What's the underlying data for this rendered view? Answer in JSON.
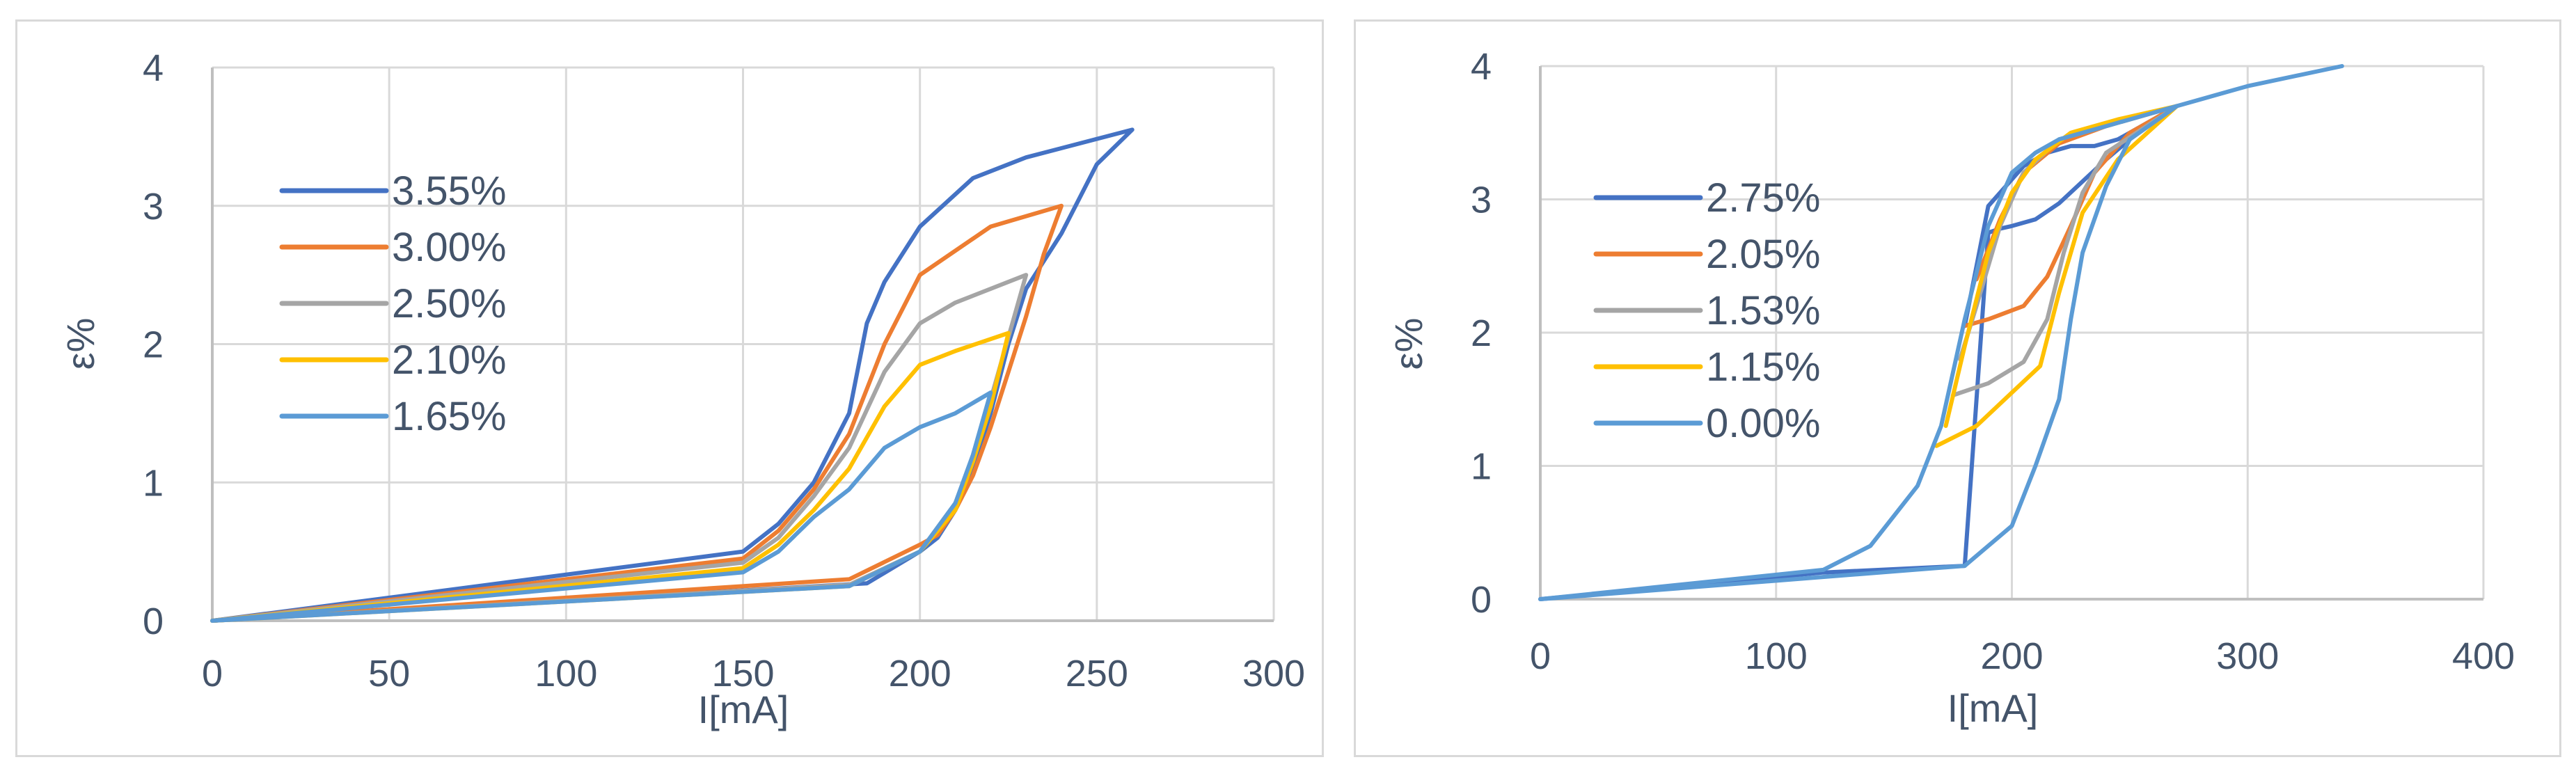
{
  "colors": {
    "blue": "#4472c4",
    "orange": "#ed7d31",
    "gray": "#a5a5a5",
    "yellow": "#ffc000",
    "lightblue": "#5b9bd5",
    "grid": "#d9d9d9",
    "axis": "#bfbfbf",
    "text": "#44546a"
  },
  "chart_data": [
    {
      "type": "line",
      "title": "",
      "xlabel": "I[mA]",
      "ylabel": "ε%",
      "xlim": [
        0,
        300
      ],
      "ylim": [
        0,
        4
      ],
      "x_ticks": [
        "0",
        "50",
        "100",
        "150",
        "200",
        "250",
        "300"
      ],
      "y_ticks": [
        "0",
        "1",
        "2",
        "3",
        "4"
      ],
      "grid": true,
      "legend_position": "upper-left",
      "series": [
        {
          "name": "3.55%",
          "color": "#4472c4",
          "x": [
            0,
            150,
            160,
            170,
            175,
            180,
            185,
            190,
            200,
            215,
            230,
            260,
            250,
            240,
            230,
            225,
            220,
            215,
            210,
            205,
            200,
            185,
            0
          ],
          "y": [
            0,
            0.5,
            0.7,
            1.0,
            1.25,
            1.5,
            2.15,
            2.45,
            2.85,
            3.2,
            3.35,
            3.55,
            3.3,
            2.8,
            2.4,
            2.0,
            1.5,
            1.1,
            0.8,
            0.6,
            0.5,
            0.27,
            0
          ]
        },
        {
          "name": "3.00%",
          "color": "#ed7d31",
          "x": [
            0,
            150,
            160,
            170,
            180,
            190,
            200,
            220,
            240,
            235,
            230,
            225,
            220,
            215,
            210,
            205,
            200,
            180,
            0
          ],
          "y": [
            0,
            0.45,
            0.65,
            0.95,
            1.35,
            2.0,
            2.5,
            2.85,
            3.0,
            2.65,
            2.2,
            1.8,
            1.4,
            1.05,
            0.8,
            0.62,
            0.55,
            0.3,
            0
          ]
        },
        {
          "name": "2.50%",
          "color": "#a5a5a5",
          "x": [
            0,
            150,
            160,
            170,
            180,
            190,
            200,
            210,
            230,
            225,
            220,
            215,
            210,
            200,
            180,
            0
          ],
          "y": [
            0,
            0.42,
            0.6,
            0.9,
            1.25,
            1.8,
            2.15,
            2.3,
            2.5,
            2.05,
            1.6,
            1.15,
            0.85,
            0.5,
            0.26,
            0
          ]
        },
        {
          "name": "2.10%",
          "color": "#ffc000",
          "x": [
            0,
            150,
            160,
            170,
            180,
            190,
            200,
            210,
            225,
            220,
            215,
            210,
            200,
            180,
            0
          ],
          "y": [
            0,
            0.38,
            0.55,
            0.8,
            1.1,
            1.55,
            1.85,
            1.95,
            2.08,
            1.55,
            1.15,
            0.8,
            0.5,
            0.25,
            0
          ]
        },
        {
          "name": "1.65%",
          "color": "#5b9bd5",
          "x": [
            0,
            150,
            160,
            170,
            180,
            190,
            200,
            210,
            220,
            215,
            210,
            200,
            180,
            0
          ],
          "y": [
            0,
            0.35,
            0.5,
            0.75,
            0.95,
            1.25,
            1.4,
            1.5,
            1.65,
            1.2,
            0.85,
            0.5,
            0.25,
            0
          ]
        }
      ]
    },
    {
      "type": "line",
      "title": "",
      "xlabel": "I[mA]",
      "ylabel": "ε%",
      "xlim": [
        0,
        400
      ],
      "ylim": [
        0,
        4
      ],
      "x_ticks": [
        "0",
        "100",
        "200",
        "300",
        "400"
      ],
      "y_ticks": [
        "0",
        "1",
        "2",
        "3",
        "4"
      ],
      "grid": true,
      "legend_position": "upper-left",
      "series": [
        {
          "name": "2.75%",
          "color": "#4472c4",
          "x": [
            0,
            120,
            180,
            190,
            195,
            200,
            210,
            220,
            240,
            260,
            270,
            255,
            245,
            235,
            225,
            215,
            205,
            190,
            185,
            180
          ],
          "y": [
            0,
            0.2,
            0.25,
            2.75,
            2.78,
            2.8,
            2.85,
            2.97,
            3.3,
            3.6,
            3.7,
            3.55,
            3.45,
            3.4,
            3.4,
            3.35,
            3.25,
            2.95,
            2.5,
            2.05
          ]
        },
        {
          "name": "2.05%",
          "color": "#ed7d31",
          "x": [
            180,
            190,
            205,
            215,
            225,
            235,
            250,
            270,
            240,
            220,
            205,
            195,
            185
          ],
          "y": [
            2.05,
            2.1,
            2.2,
            2.42,
            2.8,
            3.2,
            3.5,
            3.7,
            3.55,
            3.42,
            3.2,
            2.85,
            2.4
          ]
        },
        {
          "name": "1.53%",
          "color": "#a5a5a5",
          "x": [
            175,
            190,
            205,
            215,
            222,
            230,
            240,
            270,
            240,
            220,
            205,
            195,
            185,
            178
          ],
          "y": [
            1.53,
            1.62,
            1.78,
            2.1,
            2.6,
            3.05,
            3.35,
            3.7,
            3.55,
            3.45,
            3.2,
            2.8,
            2.2,
            1.8
          ]
        },
        {
          "name": "1.15%",
          "color": "#ffc000",
          "x": [
            168,
            185,
            200,
            212,
            220,
            230,
            245,
            270,
            245,
            225,
            210,
            200,
            190,
            180,
            172
          ],
          "y": [
            1.15,
            1.3,
            1.55,
            1.75,
            2.3,
            2.9,
            3.3,
            3.7,
            3.6,
            3.5,
            3.3,
            3.05,
            2.6,
            1.9,
            1.3
          ]
        },
        {
          "name": "0.00%",
          "color": "#5b9bd5",
          "x": [
            0,
            120,
            140,
            160,
            170,
            180,
            190,
            200,
            210,
            220,
            240,
            270,
            300,
            340,
            300,
            270,
            250,
            240,
            230,
            225,
            220,
            210,
            200,
            180,
            0
          ],
          "y": [
            0,
            0.22,
            0.4,
            0.85,
            1.3,
            2.1,
            2.8,
            3.2,
            3.35,
            3.45,
            3.55,
            3.7,
            3.85,
            4.0,
            3.85,
            3.7,
            3.45,
            3.1,
            2.6,
            2.1,
            1.5,
            1.0,
            0.55,
            0.25,
            0
          ]
        }
      ]
    }
  ]
}
